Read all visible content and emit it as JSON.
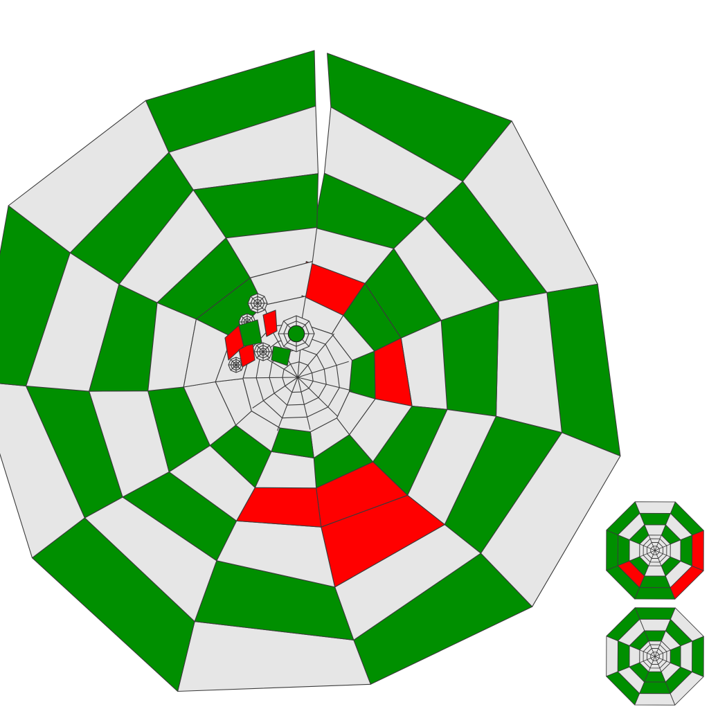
{
  "palette": {
    "green": "#008f00",
    "red": "#ff0000",
    "gray": "#e6e6e6",
    "edge": "#3a3a3a",
    "background": "#ffffff"
  },
  "main_web": {
    "polygon_sides": 11,
    "rings": 6,
    "ring_colors": [
      [
        "green",
        "gray",
        "green",
        "gray",
        "green",
        "gray",
        "green",
        "gray",
        "green",
        "gray",
        "green"
      ],
      [
        "gray",
        "green",
        "gray",
        "green",
        "gray",
        "green",
        "gray",
        "green",
        "gray",
        "green",
        "gray"
      ],
      [
        "green",
        "gray",
        "green",
        "gray",
        "red",
        "gray",
        "green",
        "gray",
        "green",
        "gray",
        "green"
      ],
      [
        "gray",
        "green",
        "gray",
        "green",
        "red",
        "red",
        "gray",
        "green",
        "gray",
        "green",
        "gray"
      ],
      [
        "red",
        "green",
        "red",
        "gray",
        "green",
        "gray",
        "green",
        "gray",
        "gray",
        "green",
        "gray"
      ],
      [
        "gray",
        "gray",
        "green",
        "gray",
        "gray",
        "green",
        "gray",
        "gray",
        "gray",
        "gray",
        "gray"
      ]
    ]
  },
  "mini_webs": [
    {
      "polygon_sides": 8,
      "ring_colors": [
        [
          "gray",
          "green",
          "red",
          "red",
          "green",
          "green",
          "green",
          "green"
        ],
        [
          "green",
          "gray",
          "green",
          "gray",
          "green",
          "red",
          "green",
          "gray"
        ],
        [
          "gray",
          "green",
          "gray",
          "green",
          "gray",
          "green",
          "gray",
          "green"
        ]
      ]
    },
    {
      "polygon_sides": 8,
      "ring_colors": [
        [
          "green",
          "gray",
          "green",
          "gray",
          "gray",
          "green",
          "gray",
          "green"
        ],
        [
          "gray",
          "green",
          "gray",
          "green",
          "green",
          "gray",
          "green",
          "gray"
        ],
        [
          "green",
          "gray",
          "green",
          "gray",
          "green",
          "green",
          "gray",
          "green"
        ]
      ]
    }
  ]
}
